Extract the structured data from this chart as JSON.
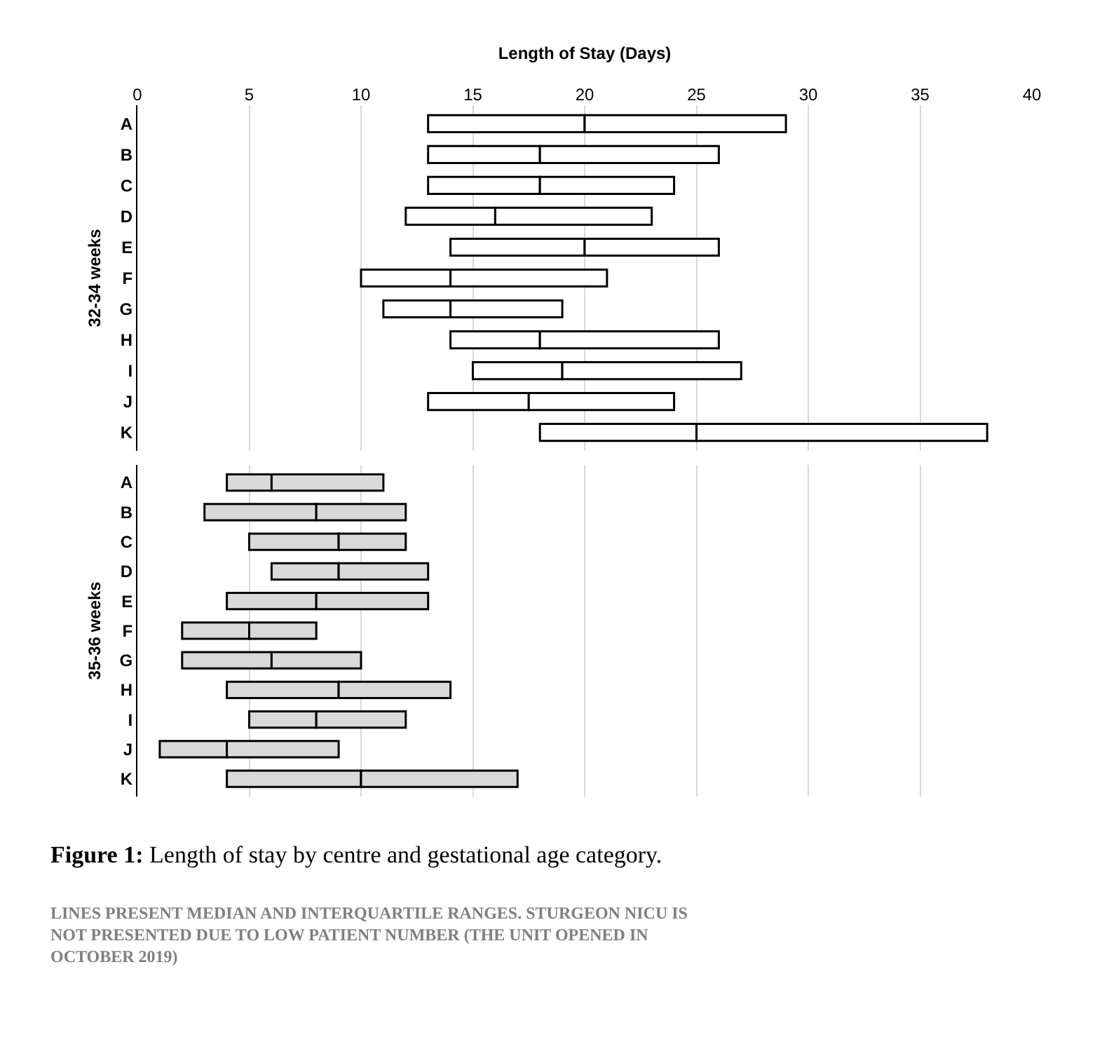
{
  "chart_data": [
    {
      "type": "bar",
      "orientation": "horizontal",
      "xlabel": "Length of Stay (Days)",
      "ylabel": "32-34 weeks",
      "categories": [
        "A",
        "B",
        "C",
        "D",
        "E",
        "F",
        "G",
        "H",
        "I",
        "J",
        "K"
      ],
      "series": [
        {
          "color": "#ffffff",
          "base": [
            13,
            13,
            13,
            12,
            14,
            10,
            11,
            14,
            15,
            13,
            18
          ],
          "values": [
            7,
            5,
            5,
            4,
            6,
            4,
            3,
            4,
            4,
            4.5,
            7
          ]
        },
        {
          "color": "#ffffff",
          "base": [
            20,
            18,
            18,
            16,
            20,
            14,
            14,
            18,
            19,
            17.5,
            25
          ],
          "values": [
            9,
            8,
            6,
            7,
            6,
            7,
            5,
            8,
            8,
            6.5,
            13
          ]
        }
      ],
      "xlim": [
        0,
        40
      ],
      "xticks": [
        0,
        5,
        10,
        15,
        20,
        25,
        30,
        35,
        40
      ],
      "grid": "x"
    },
    {
      "type": "bar",
      "orientation": "horizontal",
      "ylabel": "35-36 weeks",
      "categories": [
        "A",
        "B",
        "C",
        "D",
        "E",
        "F",
        "G",
        "H",
        "I",
        "J",
        "K"
      ],
      "series": [
        {
          "color": "#d9d9d9",
          "base": [
            4,
            3,
            5,
            6,
            4,
            2,
            2,
            4,
            5,
            1,
            4
          ],
          "values": [
            2,
            5,
            4,
            3,
            4,
            3,
            4,
            5,
            3,
            3,
            6
          ]
        },
        {
          "color": "#d9d9d9",
          "base": [
            6,
            8,
            9,
            9,
            8,
            5,
            6,
            9,
            8,
            4,
            10
          ],
          "values": [
            5,
            4,
            3,
            4,
            5,
            3,
            4,
            5,
            4,
            5,
            7
          ]
        }
      ],
      "xlim": [
        0,
        40
      ],
      "xticks": [
        0,
        5,
        10,
        15,
        20,
        25,
        30,
        35,
        40
      ],
      "grid": "x",
      "tick_labels": "y",
      "annotations": [
        "Figure 1: Length of stay by centre and gestational age category.",
        "LINES PRESENT MEDIAN AND INTERQUARTILE RANGES. STURGEON NICU IS NOT PRESENTED DUE TO LOW PATIENT NUMBER (THE UNIT OPENED IN OCTOBER 2019)"
      ]
    }
  ]
}
